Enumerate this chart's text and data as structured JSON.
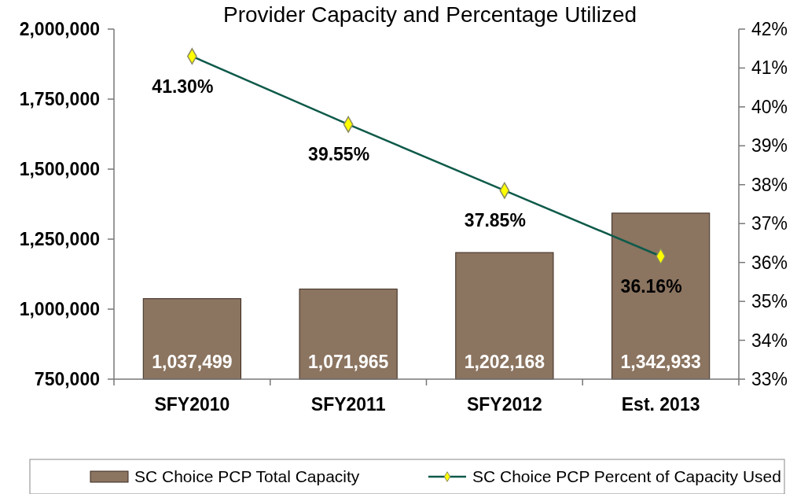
{
  "chart_data": {
    "type": "bar",
    "title": "Provider Capacity and Percentage Utilized",
    "categories": [
      "SFY2010",
      "SFY2011",
      "SFY2012",
      "Est. 2013"
    ],
    "series": [
      {
        "name": "SC Choice PCP Total Capacity",
        "color": "#8b7460",
        "values": [
          1037499,
          1071965,
          1202168,
          1342933
        ],
        "value_labels": [
          "1,037,499",
          "1,071,965",
          "1,202,168",
          "1,342,933"
        ]
      },
      {
        "name": "SC Choice PCP Percent of Capacity Used",
        "type": "line",
        "axis": "y2",
        "color": "#0e5a4a",
        "values": [
          41.3,
          39.55,
          37.85,
          36.16
        ],
        "value_labels": [
          "41.30%",
          "39.55%",
          "37.85%",
          "36.16%"
        ]
      }
    ],
    "ylim": [
      750000,
      2000000
    ],
    "yticks": [
      {
        "value": 750000,
        "label": "750,000"
      },
      {
        "value": 1000000,
        "label": "1,000,000"
      },
      {
        "value": 1250000,
        "label": "1,250,000"
      },
      {
        "value": 1500000,
        "label": "1,500,000"
      },
      {
        "value": 1750000,
        "label": "1,750,000"
      },
      {
        "value": 2000000,
        "label": "2,000,000"
      }
    ],
    "y2lim": [
      33,
      42
    ],
    "y2ticks": [
      {
        "value": 33,
        "label": "33%"
      },
      {
        "value": 34,
        "label": "34%"
      },
      {
        "value": 35,
        "label": "35%"
      },
      {
        "value": 36,
        "label": "36%"
      },
      {
        "value": 37,
        "label": "37%"
      },
      {
        "value": 38,
        "label": "38%"
      },
      {
        "value": 39,
        "label": "39%"
      },
      {
        "value": 40,
        "label": "40%"
      },
      {
        "value": 41,
        "label": "41%"
      },
      {
        "value": 42,
        "label": "42%"
      }
    ],
    "marker": "diamond",
    "legend": "bottom",
    "grid": false
  }
}
